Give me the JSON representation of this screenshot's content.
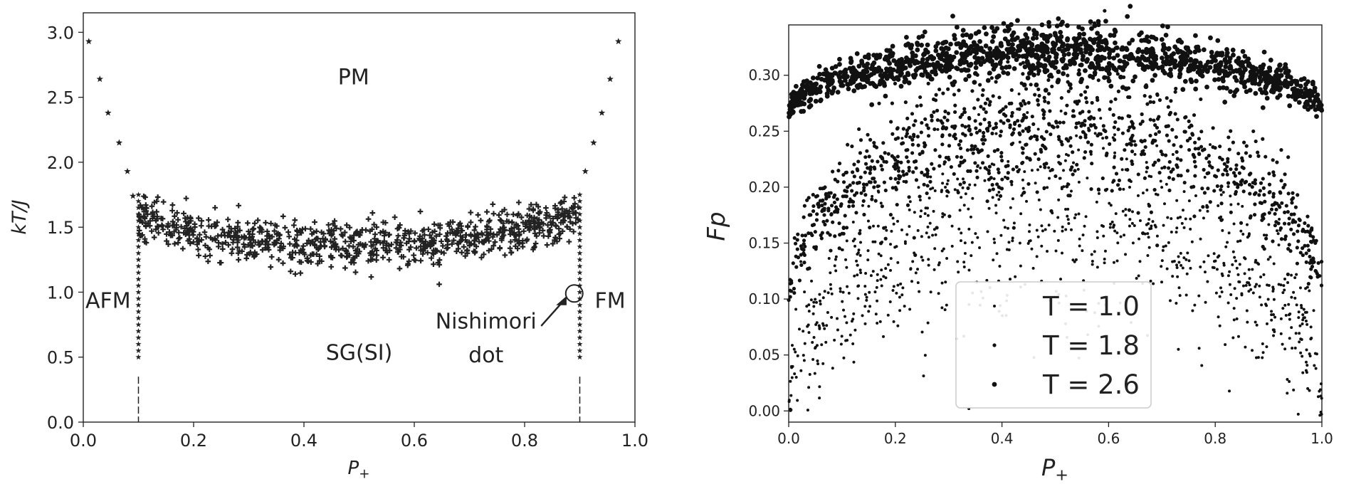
{
  "chart_data": [
    {
      "type": "scatter",
      "xlabel": "P+",
      "ylabel": "kT/J",
      "xlim": [
        0.0,
        1.0
      ],
      "ylim": [
        0.0,
        3.15
      ],
      "xticks": [
        "0.0",
        "0.2",
        "0.4",
        "0.6",
        "0.8",
        "1.0"
      ],
      "yticks": [
        "0.0",
        "0.5",
        "1.0",
        "1.5",
        "2.0",
        "2.5",
        "3.0"
      ],
      "grid": false,
      "annotations": [
        {
          "text": "PM",
          "x": 0.49,
          "y": 2.6
        },
        {
          "text": "AFM",
          "x": 0.045,
          "y": 0.88
        },
        {
          "text": "FM",
          "x": 0.955,
          "y": 0.88
        },
        {
          "text": "SG(SI)",
          "x": 0.5,
          "y": 0.48
        },
        {
          "text": "Nishimori",
          "x": 0.73,
          "y": 0.72
        },
        {
          "text": "dot",
          "x": 0.73,
          "y": 0.46
        }
      ],
      "nishimori_point": {
        "x": 0.89,
        "y": 0.99
      },
      "series": [
        {
          "marker": "star",
          "x": [
            0.01,
            0.03,
            0.045,
            0.065,
            0.08,
            0.09,
            0.91,
            0.925,
            0.94,
            0.955,
            0.97
          ],
          "y": [
            2.93,
            2.64,
            2.38,
            2.15,
            1.93,
            1.74,
            1.93,
            2.15,
            2.38,
            2.64,
            2.93
          ]
        },
        {
          "marker": "plus",
          "x": [
            0.1,
            0.1,
            0.1,
            0.1,
            0.1,
            0.1,
            0.1,
            0.1,
            0.1,
            0.1,
            0.1,
            0.1,
            0.1,
            0.9,
            0.9,
            0.9,
            0.9,
            0.9,
            0.9,
            0.9,
            0.9,
            0.9,
            0.9,
            0.9,
            0.9,
            0.9
          ],
          "y": [
            1.7,
            1.6,
            1.5,
            1.4,
            1.3,
            1.2,
            1.1,
            1.0,
            0.9,
            0.8,
            0.7,
            0.6,
            0.5,
            1.7,
            1.6,
            1.5,
            1.4,
            1.3,
            1.2,
            1.1,
            1.0,
            0.9,
            0.8,
            0.7,
            0.6,
            0.5
          ]
        },
        {
          "marker": "dense-scatter",
          "x_range": [
            0.1,
            0.9
          ],
          "y_center": [
            1.58,
            1.45,
            1.38,
            1.36,
            1.38,
            1.43,
            1.5,
            1.6
          ],
          "y_center_x": [
            0.1,
            0.2,
            0.3,
            0.4,
            0.6,
            0.7,
            0.8,
            0.9
          ],
          "y_min": 0.95,
          "y_max": 1.75
        }
      ]
    },
    {
      "type": "scatter",
      "xlabel": "P+",
      "ylabel": "Fp",
      "xlim": [
        0.0,
        1.0
      ],
      "ylim": [
        -0.01,
        0.345
      ],
      "xticks": [
        "0.0",
        "0.2",
        "0.4",
        "0.6",
        "0.8",
        "1.0"
      ],
      "yticks": [
        "0.00",
        "0.05",
        "0.10",
        "0.15",
        "0.20",
        "0.25",
        "0.30"
      ],
      "grid": false,
      "legend": {
        "placement": "bottom-center"
      },
      "series": [
        {
          "name": "T = 1.0",
          "marker_size": "small",
          "endpoint": 0.0,
          "center": 0.175,
          "spread": 0.045
        },
        {
          "name": "T = 1.8",
          "marker_size": "medium",
          "endpoint": 0.1,
          "center": 0.255,
          "spread": 0.03
        },
        {
          "name": "T = 2.6",
          "marker_size": "large",
          "endpoint": 0.265,
          "center": 0.32,
          "spread": 0.012
        }
      ]
    }
  ]
}
